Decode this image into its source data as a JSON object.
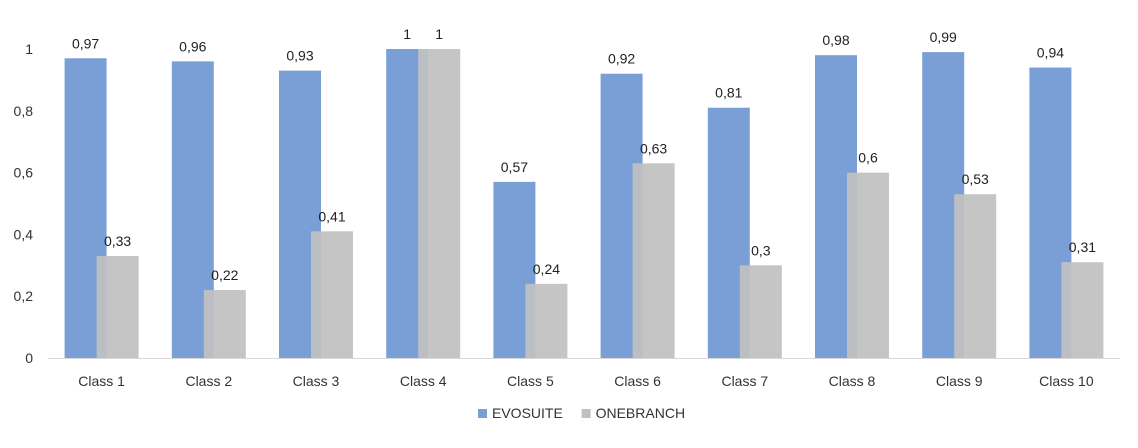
{
  "chart_data": {
    "type": "bar",
    "categories": [
      "Class 1",
      "Class 2",
      "Class 3",
      "Class 4",
      "Class 5",
      "Class 6",
      "Class 7",
      "Class 8",
      "Class 9",
      "Class 10"
    ],
    "series": [
      {
        "name": "EVOSUITE",
        "color": "#7a9fd6",
        "values": [
          0.97,
          0.96,
          0.93,
          1,
          0.57,
          0.92,
          0.81,
          0.98,
          0.99,
          0.94
        ],
        "labels": [
          "0,97",
          "0,96",
          "0,93",
          "1",
          "0,57",
          "0,92",
          "0,81",
          "0,98",
          "0,99",
          "0,94"
        ]
      },
      {
        "name": "ONEBRANCH",
        "color": "#c0c0c0",
        "values": [
          0.33,
          0.22,
          0.41,
          1,
          0.24,
          0.63,
          0.3,
          0.6,
          0.53,
          0.31
        ],
        "labels": [
          "0,33",
          "0,22",
          "0,41",
          "1",
          "0,24",
          "0,63",
          "0,3",
          "0,6",
          "0,53",
          "0,31"
        ]
      }
    ],
    "ylim": [
      0,
      1
    ],
    "yticks": [
      0,
      0.2,
      0.4,
      0.6,
      0.8,
      1
    ],
    "ytick_labels": [
      "0",
      "0,2",
      "0,4",
      "0,6",
      "0,8",
      "1"
    ],
    "legend_position": "bottom",
    "grid": false,
    "title": "",
    "xlabel": "",
    "ylabel": ""
  }
}
